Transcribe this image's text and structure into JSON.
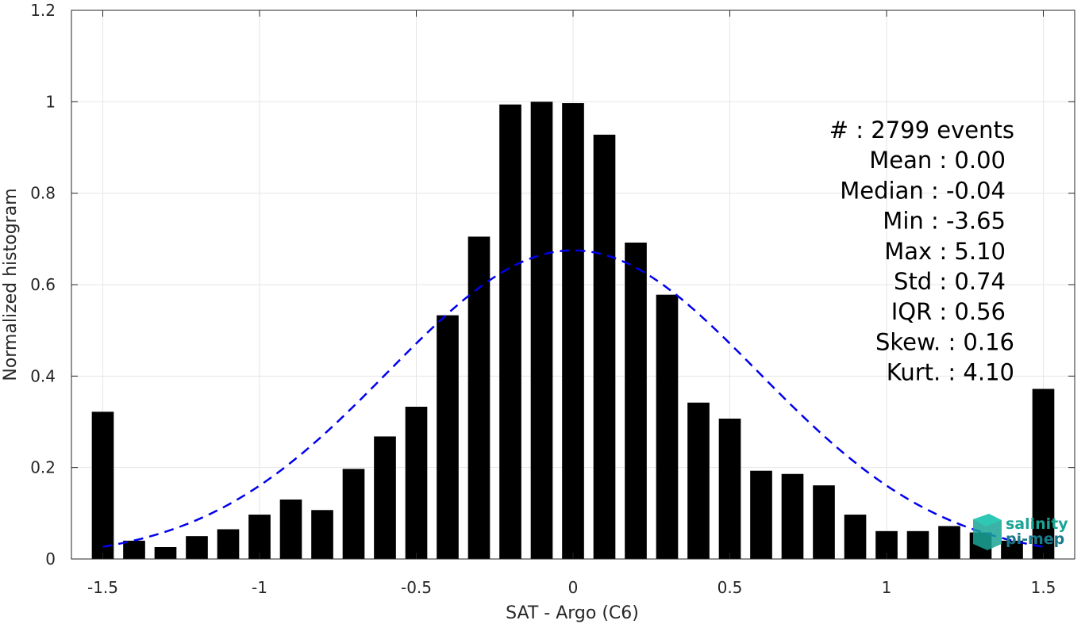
{
  "chart_data": {
    "type": "bar",
    "xlabel": "SAT - Argo (C6)",
    "ylabel": "Normalized histogram",
    "xlim": [
      -1.6,
      1.6
    ],
    "ylim": [
      0,
      1.2
    ],
    "xticks": [
      -1.5,
      -1,
      -0.5,
      0,
      0.5,
      1,
      1.5
    ],
    "xtick_labels": [
      "-1.5",
      "-1",
      "-0.5",
      "0",
      "0.5",
      "1",
      "1.5"
    ],
    "yticks": [
      0,
      0.2,
      0.4,
      0.6,
      0.8,
      1,
      1.2
    ],
    "ytick_labels": [
      "0",
      "0.2",
      "0.4",
      "0.6",
      "0.8",
      "1",
      "1.2"
    ],
    "grid": true,
    "bar_width": 0.07,
    "bar_color": "#000000",
    "series": [
      {
        "x": [
          -1.5,
          -1.4,
          -1.3,
          -1.2,
          -1.1,
          -1.0,
          -0.9,
          -0.8,
          -0.7,
          -0.6,
          -0.5,
          -0.4,
          -0.3,
          -0.2,
          -0.1,
          0.0,
          0.1,
          0.2,
          0.3,
          0.4,
          0.5,
          0.6,
          0.7,
          0.8,
          0.9,
          1.0,
          1.1,
          1.2,
          1.3,
          1.4,
          1.5
        ],
        "values": [
          0.322,
          0.04,
          0.026,
          0.05,
          0.065,
          0.097,
          0.13,
          0.107,
          0.197,
          0.268,
          0.333,
          0.533,
          0.705,
          0.994,
          1.0,
          0.997,
          0.928,
          0.692,
          0.578,
          0.342,
          0.307,
          0.193,
          0.186,
          0.161,
          0.097,
          0.061,
          0.061,
          0.072,
          0.058,
          0.04,
          0.372
        ]
      }
    ],
    "fit_curve": {
      "style": "dashed",
      "color": "#0000ee",
      "mean": 0.0,
      "std": 0.59,
      "peak": 0.675,
      "x_range": [
        -1.5,
        1.5
      ]
    }
  },
  "stats": [
    "#  : 2799 events",
    "Mean : 0.00",
    "Median : -0.04",
    "Min : -3.65",
    "Max : 5.10",
    "Std : 0.74",
    "IQR : 0.56",
    "Skew. : 0.16",
    "Kurt. : 4.10"
  ],
  "logo": {
    "line1": "salinity",
    "line2": "pi-mep",
    "color": "#1aa596"
  }
}
